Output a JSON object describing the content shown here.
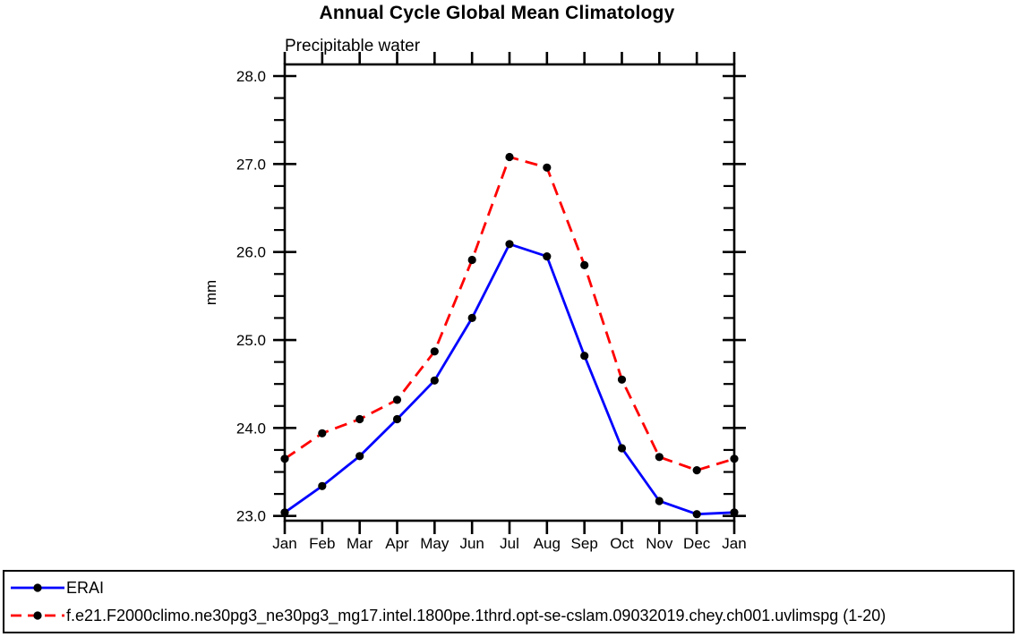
{
  "chart_data": {
    "type": "line",
    "title": "Annual Cycle Global Mean Climatology",
    "subtitle": "Precipitable water",
    "ylabel": "mm",
    "xlabel": "",
    "categories": [
      "Jan",
      "Feb",
      "Mar",
      "Apr",
      "May",
      "Jun",
      "Jul",
      "Aug",
      "Sep",
      "Oct",
      "Nov",
      "Dec",
      "Jan"
    ],
    "ylim": [
      23.0,
      28.0
    ],
    "ytick_labels": [
      "23.0",
      "24.0",
      "25.0",
      "26.0",
      "27.0",
      "28.0"
    ],
    "ytick_major_step": 1.0,
    "ytick_minor_step": 0.25,
    "grid": false,
    "frame_color": "#000000",
    "marker_color": "#000000",
    "legend_position": "bottom-box",
    "series": [
      {
        "name": "ERAI",
        "color": "#0000ff",
        "line_style": "solid",
        "marker": "filled-circle",
        "values": [
          23.04,
          23.34,
          23.68,
          24.1,
          24.54,
          25.25,
          26.09,
          25.95,
          24.82,
          23.77,
          23.17,
          23.02,
          23.04
        ]
      },
      {
        "name": "f.e21.F2000climo.ne30pg3_ne30pg3_mg17.intel.1800pe.1thrd.opt-se-cslam.09032019.chey.ch001.uvlimspg (1-20)",
        "color": "#ff0000",
        "line_style": "dashed",
        "marker": "filled-circle",
        "values": [
          23.65,
          23.94,
          24.1,
          24.32,
          24.87,
          25.91,
          27.08,
          26.96,
          25.85,
          24.55,
          23.67,
          23.52,
          23.65
        ]
      }
    ]
  }
}
